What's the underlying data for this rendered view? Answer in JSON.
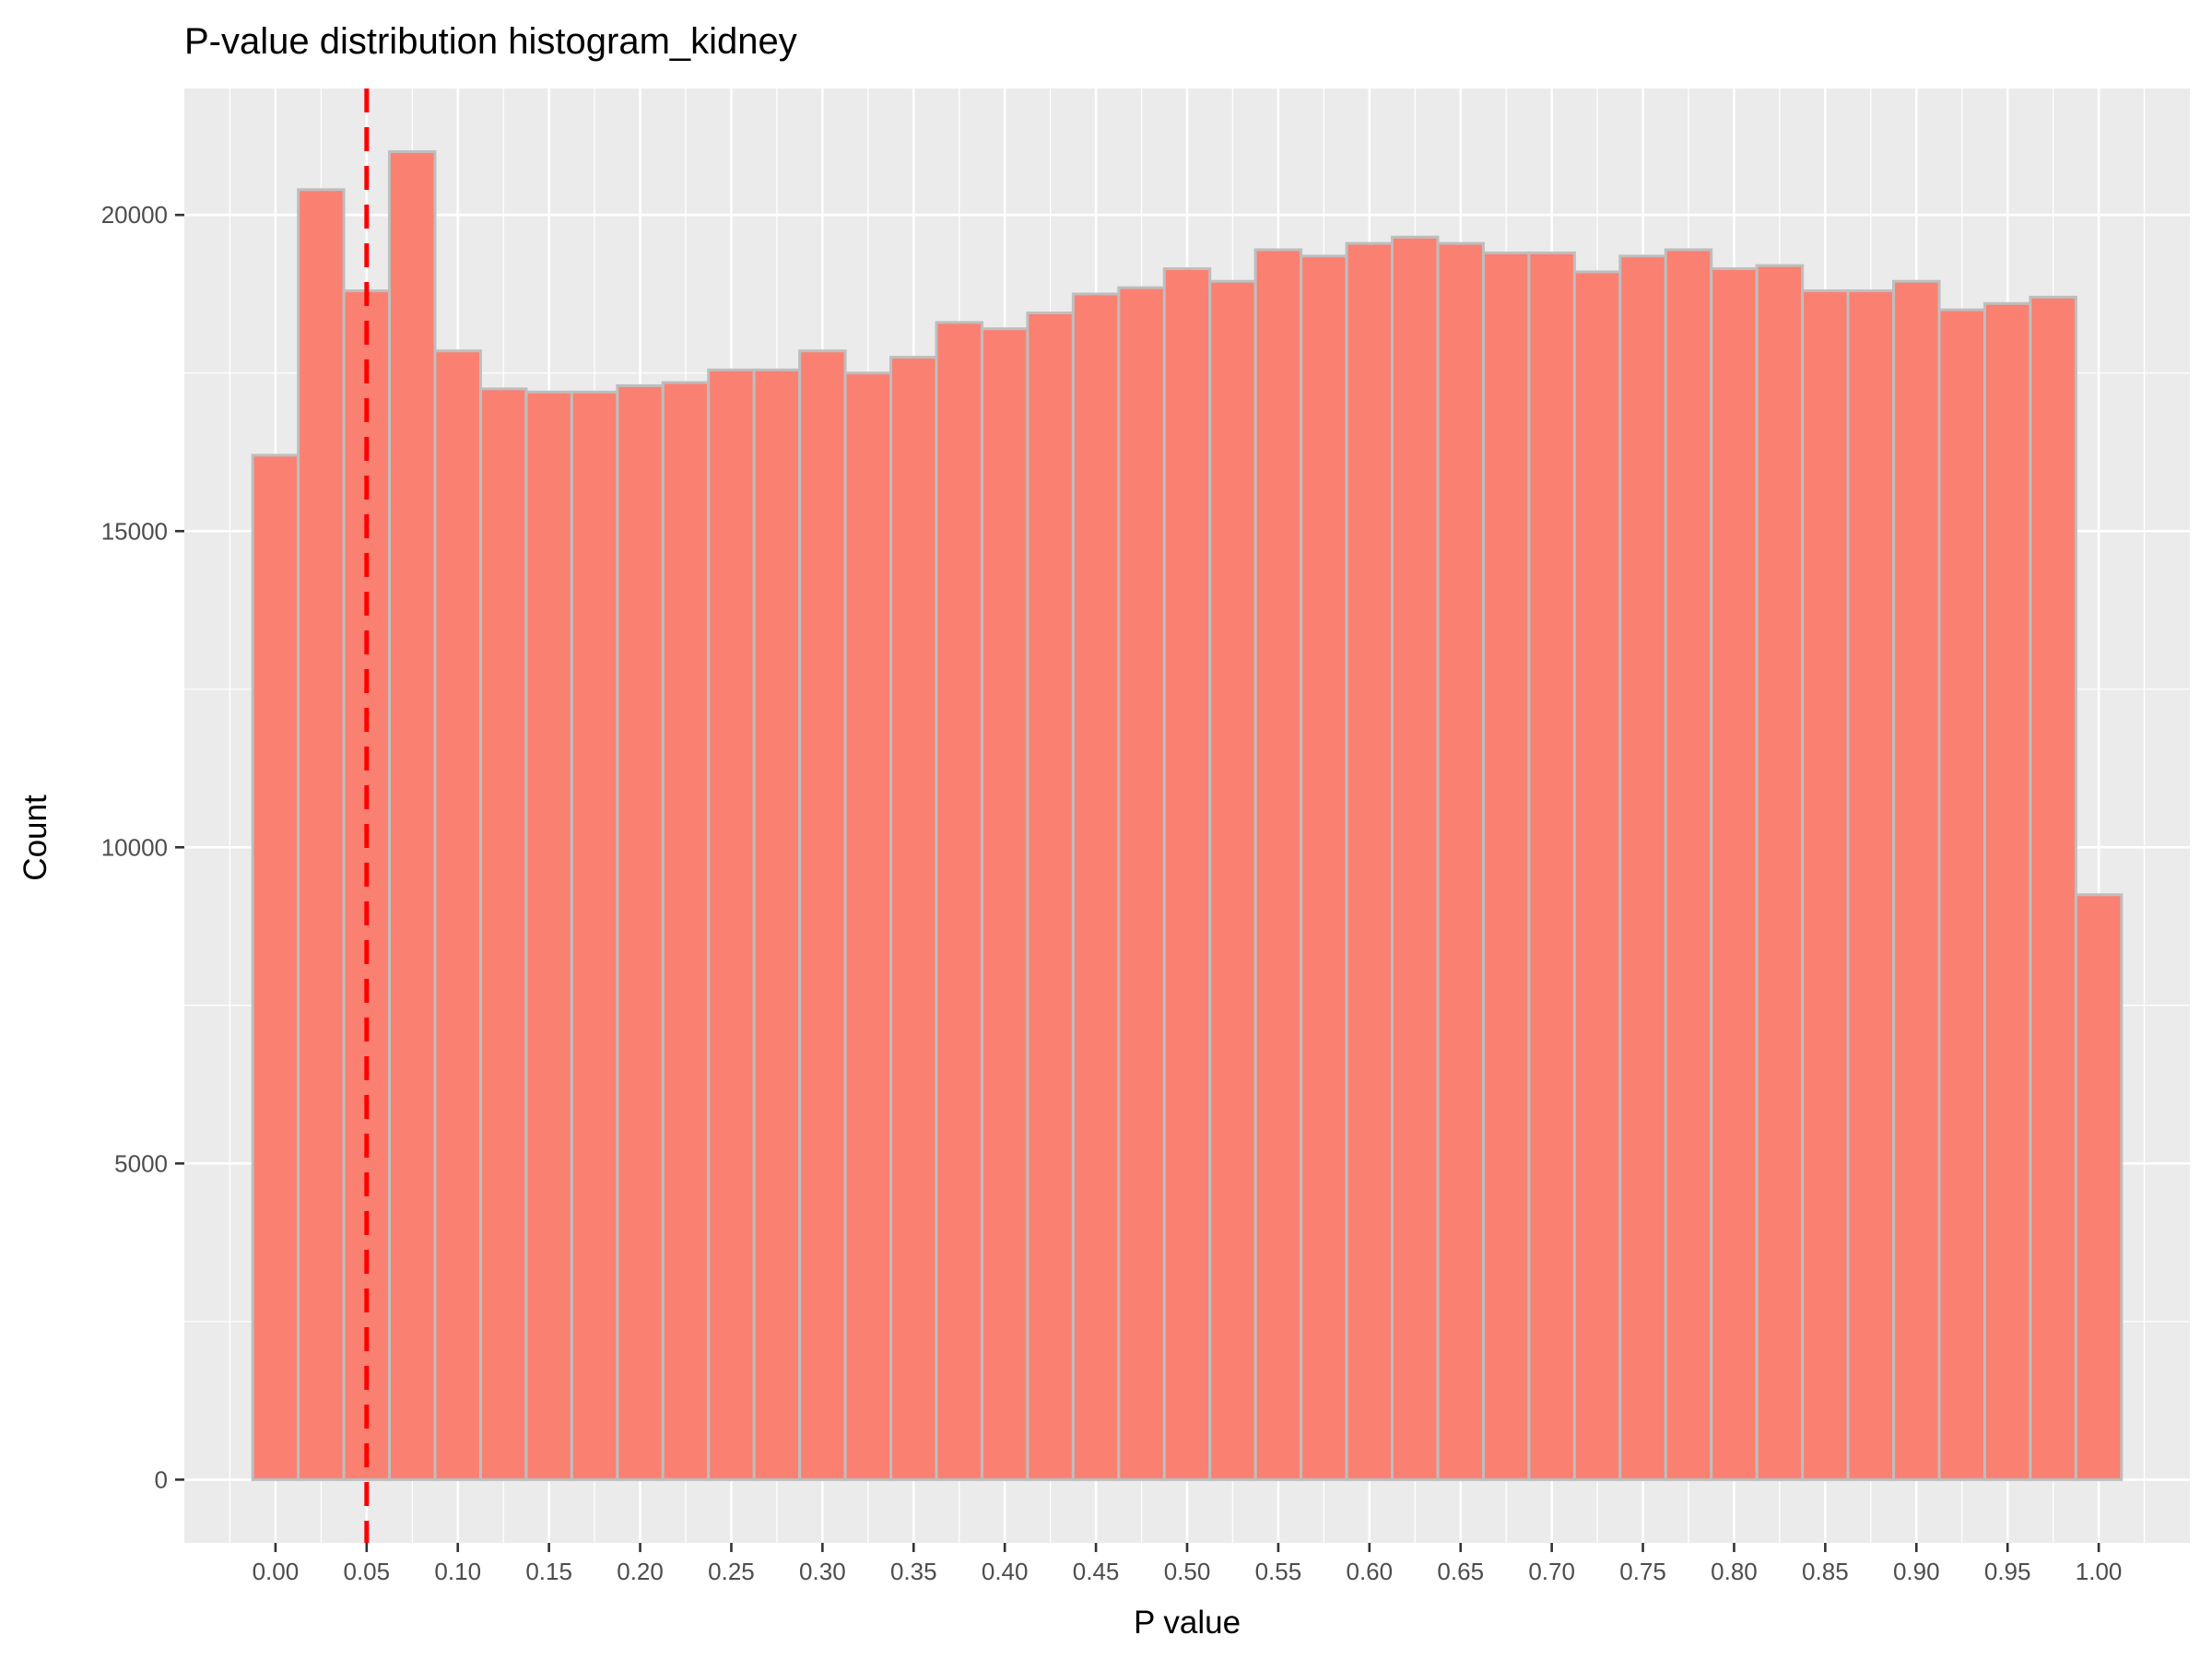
{
  "chart_data": {
    "type": "bar",
    "title": "P-value distribution histogram_kidney",
    "xlabel": "P value",
    "ylabel": "Count",
    "bin_width": 0.025,
    "x": [
      0.0,
      0.025,
      0.05,
      0.075,
      0.1,
      0.125,
      0.15,
      0.175,
      0.2,
      0.225,
      0.25,
      0.275,
      0.3,
      0.325,
      0.35,
      0.375,
      0.4,
      0.425,
      0.45,
      0.475,
      0.5,
      0.525,
      0.55,
      0.575,
      0.6,
      0.625,
      0.65,
      0.675,
      0.7,
      0.725,
      0.75,
      0.775,
      0.8,
      0.825,
      0.85,
      0.875,
      0.9,
      0.925,
      0.95,
      0.975,
      1.0
    ],
    "values": [
      16200,
      20400,
      18800,
      21000,
      17850,
      17250,
      17200,
      17200,
      17300,
      17350,
      17550,
      17550,
      17850,
      17500,
      17750,
      18300,
      18200,
      18450,
      18750,
      18850,
      19150,
      18950,
      19450,
      19350,
      19550,
      19650,
      19550,
      19400,
      19400,
      19100,
      19350,
      19450,
      19150,
      19200,
      18800,
      18800,
      18950,
      18500,
      18600,
      18700,
      9250
    ],
    "xlim": [
      -0.05,
      1.05
    ],
    "ylim": [
      -1000,
      22000
    ],
    "x_ticks": [
      "0.00",
      "0.05",
      "0.10",
      "0.15",
      "0.20",
      "0.25",
      "0.30",
      "0.35",
      "0.40",
      "0.45",
      "0.50",
      "0.55",
      "0.60",
      "0.65",
      "0.70",
      "0.75",
      "0.80",
      "0.85",
      "0.90",
      "0.95",
      "1.00"
    ],
    "y_ticks": [
      "0",
      "5000",
      "10000",
      "15000",
      "20000"
    ],
    "threshold_line": {
      "x": 0.05,
      "style": "dashed",
      "color": "#ff0000"
    },
    "bar_fill": "#fa8072",
    "bar_outline": "#bebebe",
    "panel_background": "#ebebeb",
    "grid": true,
    "legend": "none"
  }
}
